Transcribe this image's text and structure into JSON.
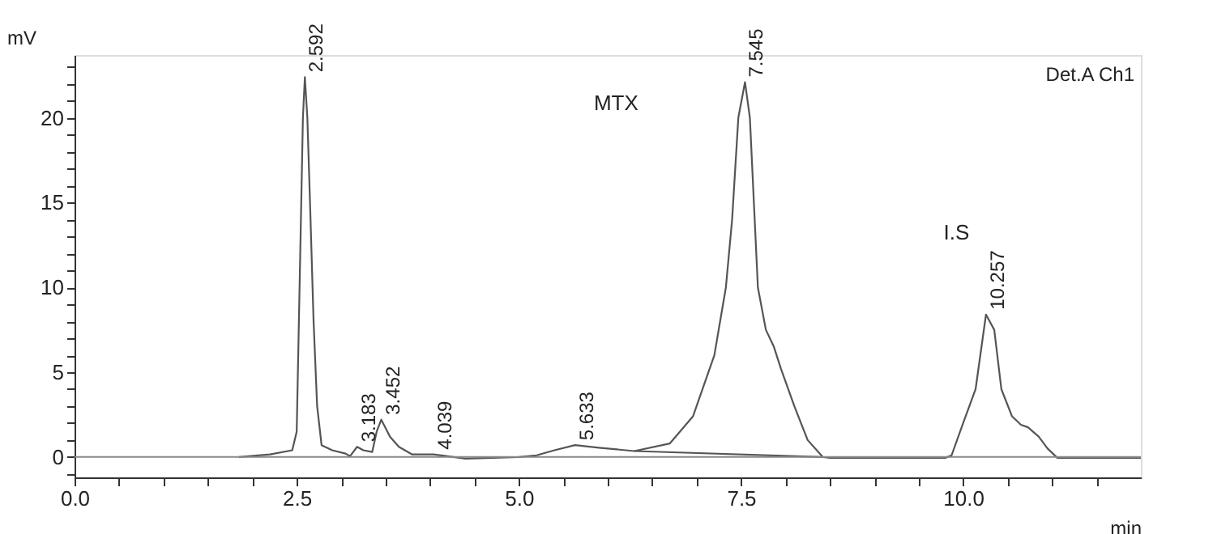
{
  "chart_data": {
    "type": "line",
    "xlabel": "min",
    "ylabel": "mV",
    "xlim": [
      0,
      12
    ],
    "ylim": [
      -1.2,
      23.7
    ],
    "xticks": [
      {
        "value": 0,
        "label": "0.0"
      },
      {
        "value": 0.5,
        "label": null
      },
      {
        "value": 1,
        "label": null
      },
      {
        "value": 1.5,
        "label": null
      },
      {
        "value": 2,
        "label": null
      },
      {
        "value": 2.5,
        "label": "2.5"
      },
      {
        "value": 3,
        "label": null
      },
      {
        "value": 3.5,
        "label": null
      },
      {
        "value": 4,
        "label": null
      },
      {
        "value": 4.5,
        "label": null
      },
      {
        "value": 5,
        "label": "5.0"
      },
      {
        "value": 5.5,
        "label": null
      },
      {
        "value": 6,
        "label": null
      },
      {
        "value": 6.5,
        "label": null
      },
      {
        "value": 7,
        "label": null
      },
      {
        "value": 7.5,
        "label": "7.5"
      },
      {
        "value": 8,
        "label": null
      },
      {
        "value": 8.5,
        "label": null
      },
      {
        "value": 9,
        "label": null
      },
      {
        "value": 9.5,
        "label": null
      },
      {
        "value": 10,
        "label": "10.0"
      },
      {
        "value": 10.5,
        "label": null
      },
      {
        "value": 11,
        "label": null
      },
      {
        "value": 11.5,
        "label": null
      }
    ],
    "yticks": [
      {
        "value": -1,
        "label": null
      },
      0,
      {
        "value": 1,
        "label": null
      },
      {
        "value": 2,
        "label": null
      },
      {
        "value": 3,
        "label": null
      },
      {
        "value": 4,
        "label": null
      },
      5,
      {
        "value": 6,
        "label": null
      },
      {
        "value": 7,
        "label": null
      },
      {
        "value": 8,
        "label": null
      },
      {
        "value": 9,
        "label": null
      },
      10,
      {
        "value": 11,
        "label": null
      },
      {
        "value": 12,
        "label": null
      },
      {
        "value": 13,
        "label": null
      },
      {
        "value": 14,
        "label": null
      },
      15,
      {
        "value": 16,
        "label": null
      },
      {
        "value": 17,
        "label": null
      },
      {
        "value": 18,
        "label": null
      },
      {
        "value": 19,
        "label": null
      },
      20,
      {
        "value": 21,
        "label": null
      },
      {
        "value": 22,
        "label": null
      },
      {
        "value": 23,
        "label": null
      }
    ],
    "grid": false,
    "marker": "none",
    "line_style": "solid",
    "series": [
      {
        "color": "#555555",
        "x": [
          1.85,
          2.2,
          2.45,
          2.5,
          2.54,
          2.57,
          2.592,
          2.62,
          2.65,
          2.69,
          2.73,
          2.78,
          2.9,
          3.05,
          3.1,
          3.18,
          3.25,
          3.35,
          3.4,
          3.452,
          3.55,
          3.65,
          3.8,
          4.04,
          4.2,
          4.4,
          5.0,
          5.2,
          5.4,
          5.633,
          5.9,
          6.3,
          6.7,
          6.96,
          7.2,
          7.33,
          7.4,
          7.47,
          7.545,
          7.6,
          7.69,
          7.78,
          7.87,
          7.95,
          8.1,
          8.25,
          8.42,
          8.5,
          9.8,
          9.87,
          10.0,
          10.14,
          10.257,
          10.35,
          10.43,
          10.55,
          10.65,
          10.73,
          10.85,
          10.95,
          11.06,
          11.3,
          12.0
        ],
        "values": [
          0.0,
          0.15,
          0.4,
          1.5,
          12,
          20,
          22.4,
          20,
          15,
          8,
          3,
          0.7,
          0.4,
          0.2,
          0.05,
          0.6,
          0.4,
          0.3,
          1.5,
          2.2,
          1.2,
          0.6,
          0.15,
          0.15,
          0.05,
          -0.1,
          0.0,
          0.1,
          0.4,
          0.7,
          0.55,
          0.35,
          0.8,
          2.4,
          6,
          10,
          14,
          20,
          22.1,
          20,
          10,
          7.5,
          6.5,
          5.2,
          3,
          1,
          0.0,
          -0.05,
          -0.05,
          0.1,
          2,
          4,
          8.4,
          7.5,
          4,
          2.4,
          1.9,
          1.75,
          1.2,
          0.5,
          -0.05,
          -0.05,
          -0.05
        ]
      },
      {
        "color": "#555555",
        "x": [
          6.3,
          8.42
        ],
        "values": [
          0.35,
          0.0
        ]
      }
    ],
    "ref_lines": [
      {
        "axis": "y",
        "value": 0,
        "color": "#888888"
      }
    ],
    "annotations": [
      "Det.A Ch1",
      "MTX",
      "I.S",
      {
        "text": "2.592",
        "x": 2.592,
        "y": 22.4
      },
      {
        "text": "3.183",
        "x": 3.183,
        "y": 0.6
      },
      {
        "text": "3.452",
        "x": 3.452,
        "y": 2.2
      },
      {
        "text": "4.039",
        "x": 4.039,
        "y": 0.15
      },
      {
        "text": "5.633",
        "x": 5.633,
        "y": 0.7
      },
      {
        "text": "7.545",
        "x": 7.545,
        "y": 22.1
      },
      {
        "text": "10.257",
        "x": 10.257,
        "y": 8.4
      }
    ]
  }
}
